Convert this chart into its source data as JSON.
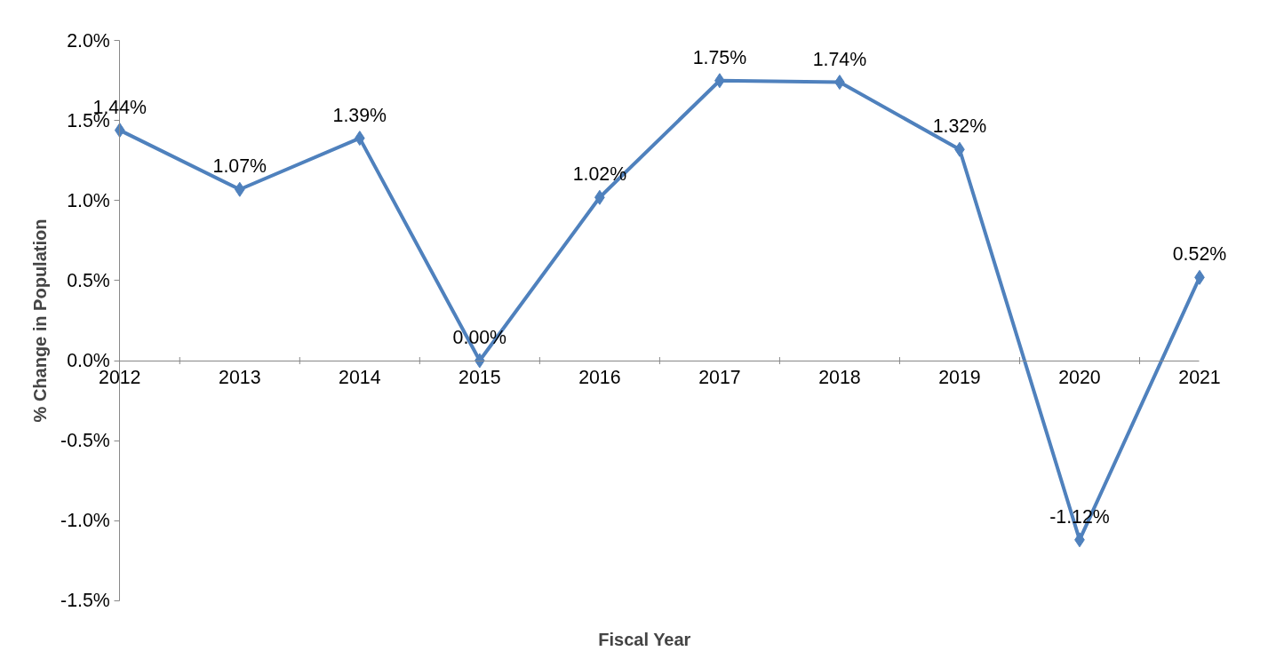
{
  "chart_data": {
    "type": "line",
    "xlabel": "Fiscal Year",
    "ylabel": "% Change in Population",
    "categories": [
      "2012",
      "2013",
      "2014",
      "2015",
      "2016",
      "2017",
      "2018",
      "2019",
      "2020",
      "2021"
    ],
    "series": [
      {
        "color": "#4f81bd",
        "values": [
          1.44,
          1.07,
          1.39,
          0.0,
          1.02,
          1.75,
          1.74,
          1.32,
          -1.12,
          0.52
        ],
        "value_labels": [
          "1.44%",
          "1.07%",
          "1.39%",
          "0.00%",
          "1.02%",
          "1.75%",
          "1.74%",
          "1.32%",
          "-1.12%",
          "0.52%"
        ]
      }
    ],
    "ylim": [
      -1.5,
      2.0
    ],
    "yticks": [
      {
        "value": -1.5,
        "label": "-1.5%"
      },
      {
        "value": -1.0,
        "label": "-1.0%"
      },
      {
        "value": -0.5,
        "label": "-0.5%"
      },
      {
        "value": 0.0,
        "label": "0.0%"
      },
      {
        "value": 0.5,
        "label": "0.5%"
      },
      {
        "value": 1.0,
        "label": "1.0%"
      },
      {
        "value": 1.5,
        "label": "1.5%"
      },
      {
        "value": 2.0,
        "label": "2.0%"
      }
    ],
    "marker": "diamond",
    "line_style": "solid",
    "grid": false
  }
}
